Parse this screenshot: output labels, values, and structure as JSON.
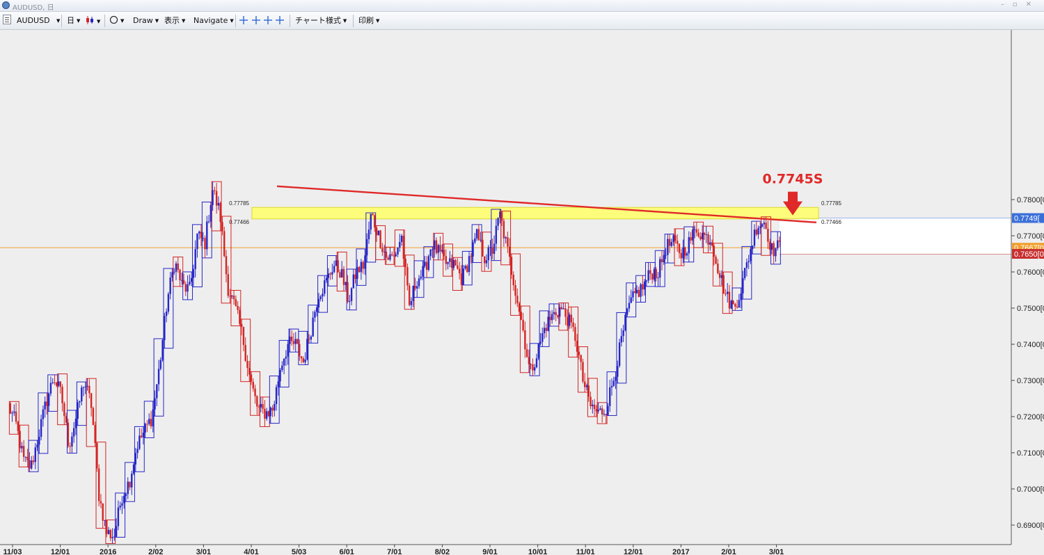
{
  "window": {
    "title": "AUDUSD, 日"
  },
  "toolbar": {
    "symbol": "AUDUSD",
    "timeframe": "日",
    "draw": "Draw",
    "view": "表示",
    "navigate": "Navigate",
    "chart_style": "チャート様式",
    "print": "印刷"
  },
  "colors": {
    "up": "#2626c8",
    "down": "#d42424",
    "trend": "#e02828",
    "zone": "#ffff66",
    "current": "#f0a030",
    "bid": "#3a6fd8",
    "low": "#c83030"
  },
  "annotations": {
    "target_price": "0.7745S",
    "zone_upper": "0.77785",
    "zone_lower": "0.77466",
    "zone_upper_right": "0.77785",
    "zone_lower_right": "0.77466"
  },
  "price_axis": {
    "ticks": [
      "0.7800[0",
      "0.7700[0",
      "0.7600[0",
      "0.7500[0",
      "0.7400[0",
      "0.7300[0",
      "0.7200[0",
      "0.7100[0",
      "0.7000[0",
      "0.6900[0"
    ],
    "labels": {
      "bid": "0.7749[",
      "current": "0.7667[0",
      "low": "0.7650[0"
    }
  },
  "chart_data": {
    "type": "candlestick",
    "symbol": "AUDUSD",
    "timeframe": "daily",
    "ylim": [
      0.681,
      0.785
    ],
    "y_ticks": [
      0.78,
      0.77,
      0.76,
      0.75,
      0.74,
      0.73,
      0.72,
      0.71,
      0.7,
      0.69
    ],
    "x_labels": [
      "11/03",
      "12/01",
      "2016",
      "2/02",
      "3/01",
      "4/01",
      "5/03",
      "6/01",
      "7/01",
      "8/02",
      "9/01",
      "10/01",
      "11/01",
      "12/01",
      "2017",
      "2/01",
      "3/01"
    ],
    "price_path": [
      0.723,
      0.718,
      0.708,
      0.706,
      0.715,
      0.724,
      0.731,
      0.726,
      0.712,
      0.72,
      0.73,
      0.723,
      0.698,
      0.688,
      0.687,
      0.698,
      0.702,
      0.712,
      0.716,
      0.72,
      0.734,
      0.752,
      0.763,
      0.756,
      0.755,
      0.77,
      0.768,
      0.783,
      0.776,
      0.756,
      0.75,
      0.742,
      0.73,
      0.722,
      0.721,
      0.722,
      0.734,
      0.74,
      0.74,
      0.735,
      0.744,
      0.754,
      0.757,
      0.762,
      0.76,
      0.752,
      0.76,
      0.762,
      0.776,
      0.77,
      0.764,
      0.764,
      0.77,
      0.75,
      0.758,
      0.76,
      0.768,
      0.765,
      0.762,
      0.762,
      0.758,
      0.764,
      0.77,
      0.764,
      0.766,
      0.776,
      0.766,
      0.756,
      0.745,
      0.732,
      0.738,
      0.745,
      0.748,
      0.75,
      0.747,
      0.742,
      0.73,
      0.723,
      0.721,
      0.722,
      0.73,
      0.74,
      0.75,
      0.754,
      0.756,
      0.76,
      0.76,
      0.767,
      0.768,
      0.765,
      0.768,
      0.772,
      0.77,
      0.769,
      0.76,
      0.753,
      0.75,
      0.756,
      0.765,
      0.773,
      0.774,
      0.766,
      0.767
    ],
    "zone": {
      "upper": 0.77785,
      "lower": 0.77466
    },
    "trendline": {
      "from": {
        "x": "4/01",
        "y": 0.7837
      },
      "to": {
        "x": "3/01",
        "y": 0.7737
      }
    },
    "annotation": {
      "text": "0.7745S",
      "price": 0.7745
    },
    "horizontal_lines": {
      "bid": 0.7749,
      "current": 0.7667,
      "low": 0.765
    }
  }
}
